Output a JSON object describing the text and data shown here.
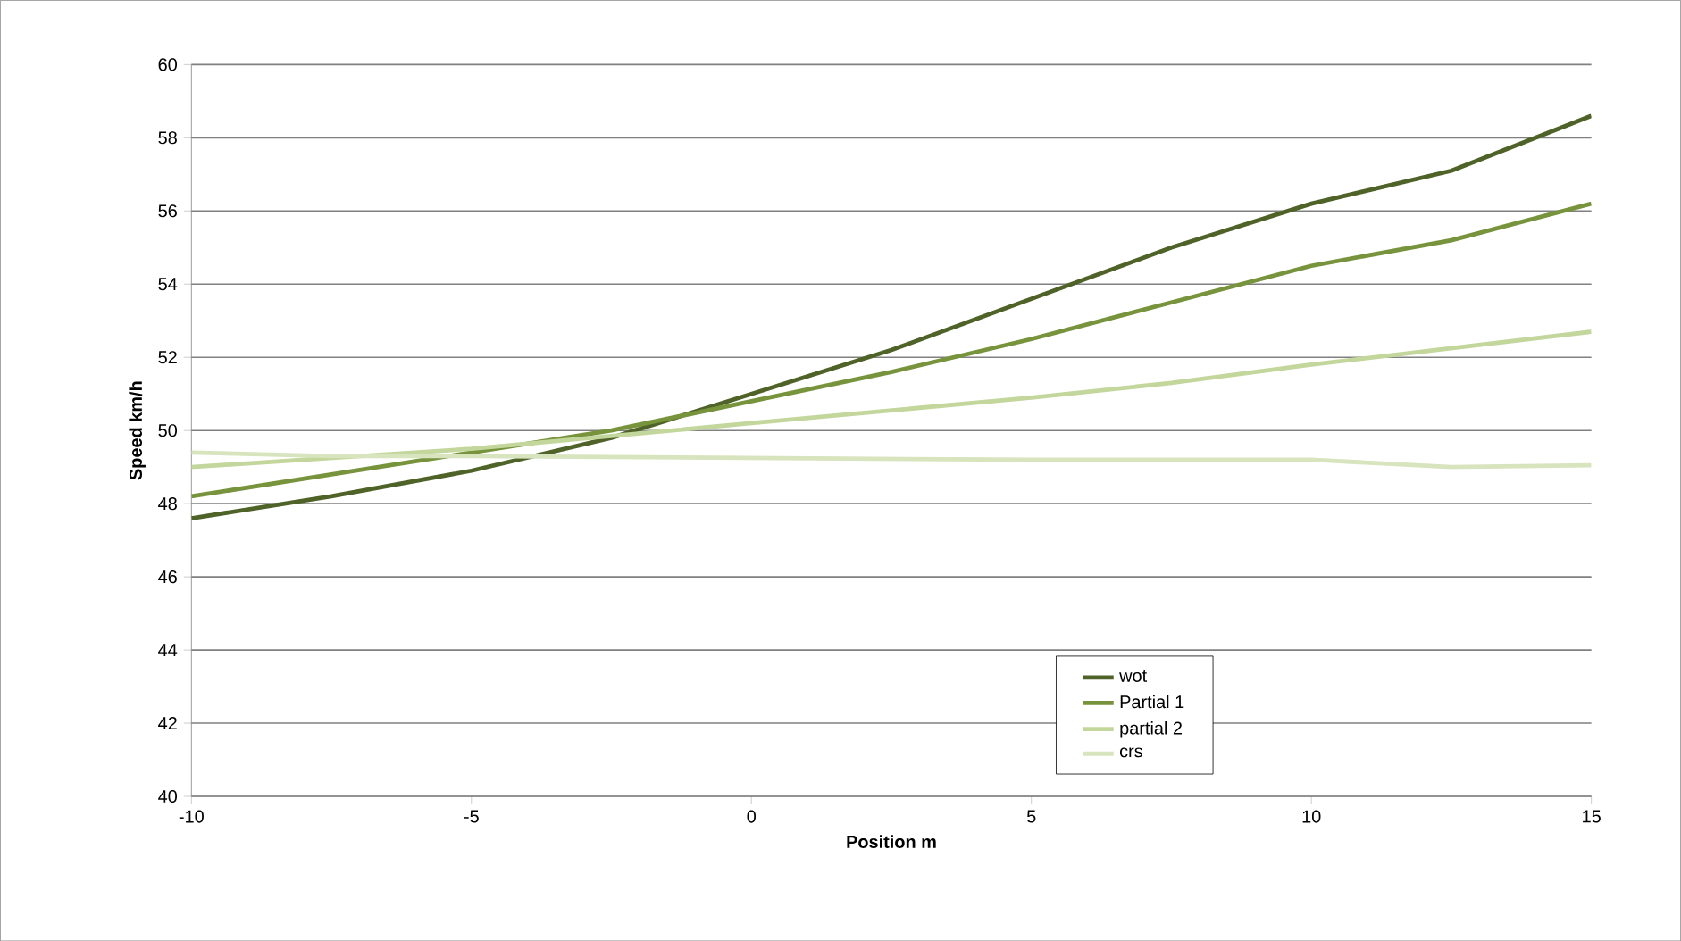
{
  "chart_data": {
    "type": "line",
    "xlabel": "Position m",
    "ylabel": "Speed km/h",
    "xlim": [
      -10,
      15
    ],
    "xticks": [
      -10,
      -5,
      0,
      5,
      10,
      15
    ],
    "ylim": [
      40,
      60
    ],
    "yticks": [
      40,
      42,
      44,
      46,
      48,
      50,
      52,
      54,
      56,
      58,
      60
    ],
    "grid": "y",
    "legend": "bottom right",
    "marker": "none",
    "line_style": "solid",
    "series": [
      {
        "name": "wot",
        "color": "#4f6228",
        "x": [
          -10,
          -7.5,
          -5,
          -2.5,
          0,
          2.5,
          5,
          7.5,
          10,
          12.5,
          15
        ],
        "values": [
          47.6,
          48.2,
          48.9,
          49.8,
          51.0,
          52.2,
          53.6,
          55.0,
          56.2,
          57.1,
          58.6
        ]
      },
      {
        "name": "Partial 1",
        "color": "#77933c",
        "x": [
          -10,
          -7.5,
          -5,
          -2.5,
          0,
          2.5,
          5,
          7.5,
          10,
          12.5,
          15
        ],
        "values": [
          48.2,
          48.8,
          49.4,
          50.0,
          50.8,
          51.6,
          52.5,
          53.5,
          54.5,
          55.2,
          56.2
        ]
      },
      {
        "name": "partial 2",
        "color": "#c3d69b",
        "x": [
          -10,
          -5,
          0,
          5,
          7.5,
          10,
          15
        ],
        "values": [
          49.0,
          49.5,
          50.2,
          50.9,
          51.3,
          51.8,
          52.7
        ]
      },
      {
        "name": "crs",
        "color": "#d7e4bd",
        "x": [
          -10,
          -7.5,
          -5,
          0,
          5,
          10,
          12.5,
          15
        ],
        "values": [
          49.4,
          49.3,
          49.3,
          49.25,
          49.2,
          49.2,
          49.0,
          49.05
        ]
      }
    ]
  }
}
